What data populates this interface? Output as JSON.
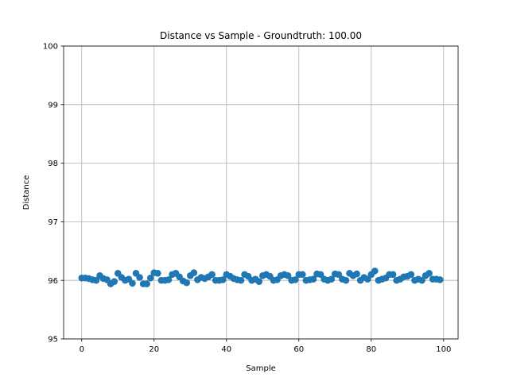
{
  "chart_data": {
    "type": "scatter",
    "title": "Distance vs Sample - Groundtruth: 100.00",
    "xlabel": "Sample",
    "ylabel": "Distance",
    "xlim": [
      -5,
      104
    ],
    "ylim": [
      95,
      100
    ],
    "xticks": [
      0,
      20,
      40,
      60,
      80,
      100
    ],
    "yticks": [
      95,
      96,
      97,
      98,
      99,
      100
    ],
    "grid": true,
    "marker_color": "#1f77b4",
    "series": [
      {
        "x": [
          0,
          1,
          2,
          3,
          4,
          5,
          6,
          7,
          8,
          9,
          10,
          11,
          12,
          13,
          14,
          15,
          16,
          17,
          18,
          19,
          20,
          21,
          22,
          23,
          24,
          25,
          26,
          27,
          28,
          29,
          30,
          31,
          32,
          33,
          34,
          35,
          36,
          37,
          38,
          39,
          40,
          41,
          42,
          43,
          44,
          45,
          46,
          47,
          48,
          49,
          50,
          51,
          52,
          53,
          54,
          55,
          56,
          57,
          58,
          59,
          60,
          61,
          62,
          63,
          64,
          65,
          66,
          67,
          68,
          69,
          70,
          71,
          72,
          73,
          74,
          75,
          76,
          77,
          78,
          79,
          80,
          81,
          82,
          83,
          84,
          85,
          86,
          87,
          88,
          89,
          90,
          91,
          92,
          93,
          94,
          95,
          96,
          97,
          98,
          99
        ],
        "y": [
          96.04,
          96.04,
          96.03,
          96.01,
          96.0,
          96.08,
          96.03,
          96.01,
          95.94,
          95.98,
          96.12,
          96.05,
          96.0,
          96.02,
          95.95,
          96.12,
          96.05,
          95.94,
          95.94,
          96.04,
          96.13,
          96.12,
          96.0,
          96.0,
          96.01,
          96.1,
          96.12,
          96.06,
          95.99,
          95.96,
          96.08,
          96.13,
          96.01,
          96.05,
          96.03,
          96.06,
          96.1,
          96.0,
          96.0,
          96.01,
          96.1,
          96.07,
          96.03,
          96.01,
          96.0,
          96.1,
          96.07,
          96.0,
          96.02,
          95.98,
          96.08,
          96.1,
          96.07,
          96.0,
          96.01,
          96.08,
          96.1,
          96.08,
          96.0,
          96.01,
          96.1,
          96.1,
          96.0,
          96.01,
          96.02,
          96.11,
          96.1,
          96.02,
          96.0,
          96.02,
          96.11,
          96.1,
          96.02,
          96.0,
          96.12,
          96.08,
          96.11,
          96.0,
          96.05,
          96.02,
          96.1,
          96.16,
          96.0,
          96.02,
          96.04,
          96.1,
          96.1,
          96.0,
          96.02,
          96.06,
          96.07,
          96.1,
          96.0,
          96.02,
          96.0,
          96.08,
          96.12,
          96.02,
          96.02,
          96.01
        ]
      }
    ]
  }
}
